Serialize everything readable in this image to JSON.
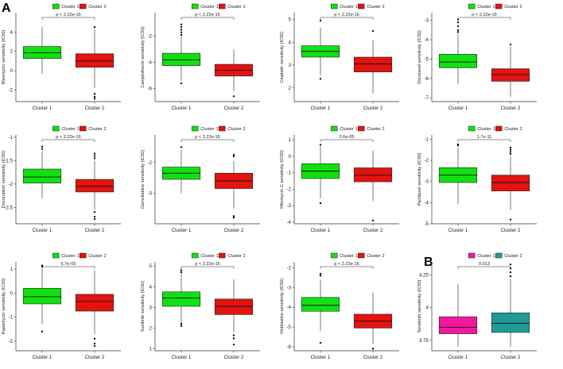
{
  "panel_labels": {
    "a": "A",
    "b": "B"
  },
  "colors": {
    "green": "#11e011",
    "red": "#e3130f",
    "pink": "#f0199b",
    "teal": "#1f9a96",
    "axis": "#333333"
  },
  "chart_data": [
    {
      "type": "box",
      "ylabel": "Bleomycin sensitivity (IC50)",
      "legend": [
        "Cluster 1",
        "Cluster 2"
      ],
      "categories": [
        "Cluster 1",
        "Cluster 2"
      ],
      "p_value": "p < 2.22e-16",
      "palette": [
        "green",
        "red"
      ],
      "ylim": [
        -3.2,
        6
      ],
      "yticks": [
        -2,
        0,
        2,
        4
      ],
      "boxes": [
        {
          "q1": 1.25,
          "median": 1.85,
          "q3": 2.5,
          "whisker_low": -0.35,
          "whisker_high": 4.55,
          "outliers": []
        },
        {
          "q1": 0.35,
          "median": 1.0,
          "q3": 1.75,
          "whisker_low": -1.8,
          "whisker_high": 4.3,
          "outliers": [
            -2.4,
            -2.7,
            -2.9,
            4.5
          ]
        }
      ]
    },
    {
      "type": "box",
      "ylabel": "Camptothecin sensitivity (IC50)",
      "legend": [
        "Cluster 1",
        "Cluster 2"
      ],
      "categories": [
        "Cluster 1",
        "Cluster 2"
      ],
      "p_value": "p < 2.22e-16",
      "palette": [
        "green",
        "red"
      ],
      "ylim": [
        -7,
        -0.2
      ],
      "yticks": [
        -6,
        -4,
        -2
      ],
      "boxes": [
        {
          "q1": -4.25,
          "median": -3.8,
          "q3": -3.3,
          "whisker_low": -5.4,
          "whisker_high": -2.05,
          "outliers": [
            -1.5,
            -1.7,
            -1.9,
            -1.3,
            -1.1,
            -5.6
          ]
        },
        {
          "q1": -5.05,
          "median": -4.6,
          "q3": -4.15,
          "whisker_low": -6.2,
          "whisker_high": -3.0,
          "outliers": [
            -6.6
          ]
        }
      ]
    },
    {
      "type": "box",
      "ylabel": "Cisplatin sensitivity (IC50)",
      "legend": [
        "Cluster 1",
        "Cluster 2"
      ],
      "categories": [
        "Cluster 1",
        "Cluster 2"
      ],
      "p_value": "p < 2.22e-16",
      "palette": [
        "green",
        "red"
      ],
      "ylim": [
        1.4,
        5.3
      ],
      "yticks": [
        2,
        3,
        4,
        5
      ],
      "boxes": [
        {
          "q1": 3.35,
          "median": 3.6,
          "q3": 3.85,
          "whisker_low": 2.55,
          "whisker_high": 4.65,
          "outliers": [
            2.4,
            4.95
          ]
        },
        {
          "q1": 2.7,
          "median": 3.05,
          "q3": 3.35,
          "whisker_low": 1.75,
          "whisker_high": 4.1,
          "outliers": [
            4.5
          ]
        }
      ]
    },
    {
      "type": "box",
      "ylabel": "Docetaxel sensitivity (IC50)",
      "legend": [
        "Cluster 1",
        "Cluster 2"
      ],
      "categories": [
        "Cluster 1",
        "Cluster 2"
      ],
      "p_value": "p < 2.22e-16",
      "palette": [
        "green",
        "red"
      ],
      "ylim": [
        -7.2,
        -2.6
      ],
      "yticks": [
        -7,
        -6,
        -5,
        -4,
        -3
      ],
      "boxes": [
        {
          "q1": -5.45,
          "median": -5.15,
          "q3": -4.75,
          "whisker_low": -6.3,
          "whisker_high": -3.7,
          "outliers": [
            -3.5,
            -3.3,
            -3.1,
            -2.95,
            -3.6
          ]
        },
        {
          "q1": -6.15,
          "median": -5.8,
          "q3": -5.5,
          "whisker_low": -6.95,
          "whisker_high": -4.35,
          "outliers": [
            -4.25
          ]
        }
      ]
    },
    {
      "type": "box",
      "ylabel": "Doxorubicin sensitivity (IC50)",
      "legend": [
        "Cluster 1",
        "Cluster 2"
      ],
      "categories": [
        "Cluster 1",
        "Cluster 2"
      ],
      "p_value": "p < 2.22e-16",
      "palette": [
        "green",
        "red"
      ],
      "ylim": [
        -2.85,
        -0.95
      ],
      "yticks": [
        -2.5,
        -2.0,
        -1.5,
        -1.0
      ],
      "boxes": [
        {
          "q1": -1.98,
          "median": -1.85,
          "q3": -1.68,
          "whisker_low": -2.3,
          "whisker_high": -1.3,
          "outliers": [
            -1.2,
            -1.25
          ]
        },
        {
          "q1": -2.17,
          "median": -2.05,
          "q3": -1.9,
          "whisker_low": -2.55,
          "whisker_high": -1.5,
          "outliers": [
            -1.4,
            -1.45,
            -1.35,
            -2.6,
            -2.7,
            -2.75
          ]
        }
      ]
    },
    {
      "type": "box",
      "ylabel": "Gemcitabine sensitivity (IC50)",
      "legend": [
        "Cluster 1",
        "Cluster 2"
      ],
      "categories": [
        "Cluster 1",
        "Cluster 2"
      ],
      "p_value": "p < 2.22e-16",
      "palette": [
        "green",
        "red"
      ],
      "ylim": [
        -4.0,
        -1.1
      ],
      "yticks": [
        -3,
        -2
      ],
      "boxes": [
        {
          "q1": -2.55,
          "median": -2.35,
          "q3": -2.15,
          "whisker_low": -3.0,
          "whisker_high": -1.6,
          "outliers": [
            -1.5
          ]
        },
        {
          "q1": -2.85,
          "median": -2.6,
          "q3": -2.35,
          "whisker_low": -3.5,
          "whisker_high": -1.95,
          "outliers": [
            -1.75,
            -1.8,
            -3.75,
            -3.8
          ]
        }
      ]
    },
    {
      "type": "box",
      "ylabel": "Mitomycin.C sensitivity (IC50)",
      "legend": [
        "Cluster 1",
        "Cluster 2"
      ],
      "categories": [
        "Cluster 1",
        "Cluster 2"
      ],
      "p_value": "2.6e-05",
      "palette": [
        "green",
        "red"
      ],
      "ylim": [
        -4.1,
        1.3
      ],
      "yticks": [
        -4,
        -3,
        -2,
        -1,
        0,
        1
      ],
      "boxes": [
        {
          "q1": -1.35,
          "median": -0.9,
          "q3": -0.45,
          "whisker_low": -2.55,
          "whisker_high": 0.6,
          "outliers": [
            -2.85,
            0.7
          ]
        },
        {
          "q1": -1.55,
          "median": -1.15,
          "q3": -0.7,
          "whisker_low": -2.7,
          "whisker_high": 0.35,
          "outliers": [
            -3.9
          ]
        }
      ]
    },
    {
      "type": "box",
      "ylabel": "Paclitaxel sensitivity (IC50)",
      "legend": [
        "Cluster 1",
        "Cluster 2"
      ],
      "categories": [
        "Cluster 1",
        "Cluster 2"
      ],
      "p_value": "1.7e-11",
      "palette": [
        "green",
        "red"
      ],
      "ylim": [
        -5.0,
        -0.8
      ],
      "yticks": [
        -5,
        -4,
        -3,
        -2,
        -1
      ],
      "boxes": [
        {
          "q1": -3.05,
          "median": -2.7,
          "q3": -2.35,
          "whisker_low": -4.05,
          "whisker_high": -1.4,
          "outliers": [
            -1.25,
            -1.3
          ]
        },
        {
          "q1": -3.45,
          "median": -3.05,
          "q3": -2.7,
          "whisker_low": -4.35,
          "whisker_high": -1.8,
          "outliers": [
            -1.4,
            -1.5,
            -1.6,
            -1.7,
            -4.8
          ]
        }
      ]
    },
    {
      "type": "box",
      "ylabel": "Rapamycin sensitivity (IC50)",
      "legend": [
        "Cluster 1",
        "Cluster 2"
      ],
      "categories": [
        "Cluster 1",
        "Cluster 2"
      ],
      "p_value": "6.7e-05",
      "palette": [
        "green",
        "red"
      ],
      "ylim": [
        -2.4,
        1.3
      ],
      "yticks": [
        -2,
        -1,
        0,
        1
      ],
      "boxes": [
        {
          "q1": -0.45,
          "median": -0.15,
          "q3": 0.2,
          "whisker_low": -1.3,
          "whisker_high": 1.0,
          "outliers": [
            1.1,
            1.15,
            -1.6
          ]
        },
        {
          "q1": -0.75,
          "median": -0.35,
          "q3": -0.05,
          "whisker_low": -1.7,
          "whisker_high": 0.95,
          "outliers": [
            -1.9,
            -2.1,
            -2.2
          ]
        }
      ]
    },
    {
      "type": "box",
      "ylabel": "Sunitinib sensitivity (IC50)",
      "legend": [
        "Cluster 1",
        "Cluster 2"
      ],
      "categories": [
        "Cluster 1",
        "Cluster 2"
      ],
      "p_value": "p < 2.22e-16",
      "palette": [
        "green",
        "red"
      ],
      "ylim": [
        0.9,
        5.2
      ],
      "yticks": [
        1,
        2,
        3,
        4,
        5
      ],
      "boxes": [
        {
          "q1": 3.05,
          "median": 3.45,
          "q3": 3.75,
          "whisker_low": 2.25,
          "whisker_high": 4.65,
          "outliers": [
            4.8,
            4.7,
            2.1,
            2.2
          ]
        },
        {
          "q1": 2.65,
          "median": 3.05,
          "q3": 3.4,
          "whisker_low": 1.8,
          "whisker_high": 4.35,
          "outliers": [
            1.65,
            1.5,
            1.2
          ]
        }
      ]
    },
    {
      "type": "box",
      "ylabel": "Vinblastine sensitivity (IC50)",
      "legend": [
        "Cluster 1",
        "Cluster 2"
      ],
      "categories": [
        "Cluster 1",
        "Cluster 2"
      ],
      "p_value": "p < 2.22e-16",
      "palette": [
        "green",
        "red"
      ],
      "ylim": [
        -6.2,
        -1.7
      ],
      "yticks": [
        -6,
        -5,
        -4,
        -3,
        -2
      ],
      "boxes": [
        {
          "q1": -4.2,
          "median": -3.9,
          "q3": -3.5,
          "whisker_low": -5.2,
          "whisker_high": -2.6,
          "outliers": [
            -2.3,
            -2.4,
            -5.8
          ]
        },
        {
          "q1": -5.05,
          "median": -4.7,
          "q3": -4.35,
          "whisker_low": -5.85,
          "whisker_high": -3.25,
          "outliers": [
            -6.1
          ]
        }
      ]
    },
    {
      "type": "box",
      "ylabel": "Sorafenib sensitivity (IC50)",
      "legend": [
        "Cluster 1",
        "Cluster 2"
      ],
      "categories": [
        "Cluster 1",
        "Cluster 2"
      ],
      "p_value": "0.013",
      "palette": [
        "pink",
        "teal"
      ],
      "ylim": [
        3.67,
        4.35
      ],
      "yticks": [
        3.75,
        4.0,
        4.25
      ],
      "boxes": [
        {
          "q1": 3.8,
          "median": 3.85,
          "q3": 3.93,
          "whisker_low": 3.7,
          "whisker_high": 4.18,
          "outliers": []
        },
        {
          "q1": 3.81,
          "median": 3.88,
          "q3": 3.96,
          "whisker_low": 3.7,
          "whisker_high": 4.22,
          "outliers": [
            4.24,
            4.27,
            4.3,
            4.33
          ]
        }
      ]
    }
  ]
}
